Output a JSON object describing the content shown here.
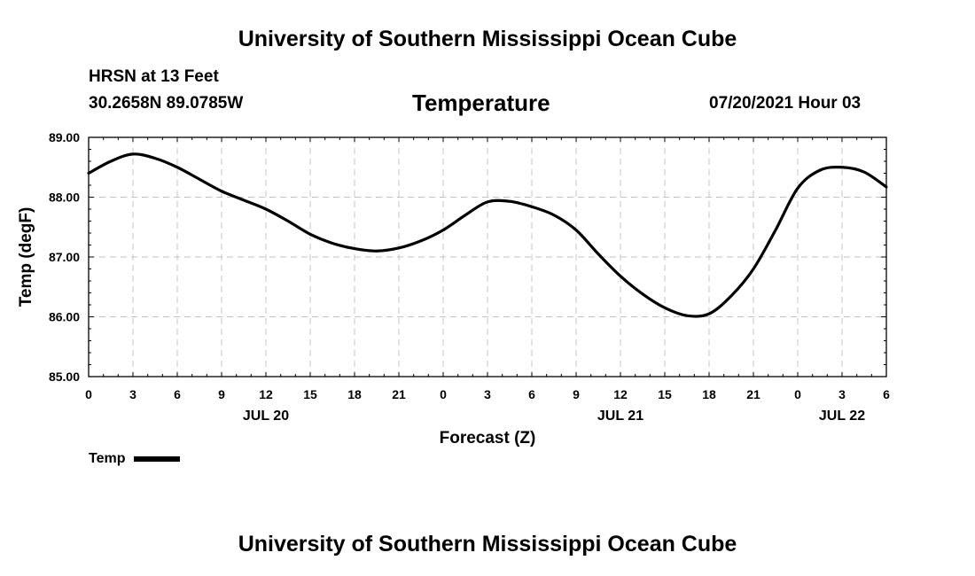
{
  "header": {
    "title": "University of Southern Mississippi Ocean Cube",
    "station": "HRSN at 13 Feet",
    "coordinates": "30.2658N  89.0785W",
    "issued": "07/20/2021 Hour 03"
  },
  "footer": {
    "title": "University of Southern Mississippi Ocean Cube"
  },
  "chart_data": {
    "type": "line",
    "title": "Temperature",
    "xlabel": "Forecast (Z)",
    "ylabel": "Temp (degF)",
    "ylim": [
      85.0,
      89.0
    ],
    "xlim": [
      0,
      54
    ],
    "y_ticks": [
      "85.00",
      "86.00",
      "87.00",
      "88.00",
      "89.00"
    ],
    "x_ticks": [
      "0",
      "3",
      "6",
      "9",
      "12",
      "15",
      "18",
      "21",
      "0",
      "3",
      "6",
      "9",
      "12",
      "15",
      "18",
      "21",
      "0",
      "3",
      "6"
    ],
    "date_labels": [
      {
        "label": "JUL 20",
        "x": 12
      },
      {
        "label": "JUL 21",
        "x": 36
      },
      {
        "label": "JUL 22",
        "x": 51
      }
    ],
    "grid": true,
    "legend": {
      "position": "bottom-left",
      "entries": [
        "Temp"
      ]
    },
    "series": [
      {
        "name": "Temp",
        "color": "#000000",
        "x": [
          0,
          1.5,
          3,
          4.5,
          6,
          7.5,
          9,
          10.5,
          12,
          13.5,
          15,
          16.5,
          18,
          19.5,
          21,
          22.5,
          24,
          25.5,
          27,
          28.5,
          30,
          31.5,
          33,
          34.5,
          36,
          37.5,
          39,
          40.5,
          42,
          43.5,
          45,
          46.5,
          48,
          49.5,
          51,
          52.5,
          54
        ],
        "values": [
          88.4,
          88.6,
          88.72,
          88.65,
          88.5,
          88.3,
          88.1,
          87.95,
          87.8,
          87.6,
          87.38,
          87.23,
          87.14,
          87.1,
          87.15,
          87.27,
          87.45,
          87.7,
          87.92,
          87.93,
          87.84,
          87.7,
          87.45,
          87.05,
          86.68,
          86.38,
          86.15,
          86.02,
          86.05,
          86.35,
          86.8,
          87.45,
          88.15,
          88.45,
          88.5,
          88.42,
          88.17
        ]
      }
    ]
  }
}
